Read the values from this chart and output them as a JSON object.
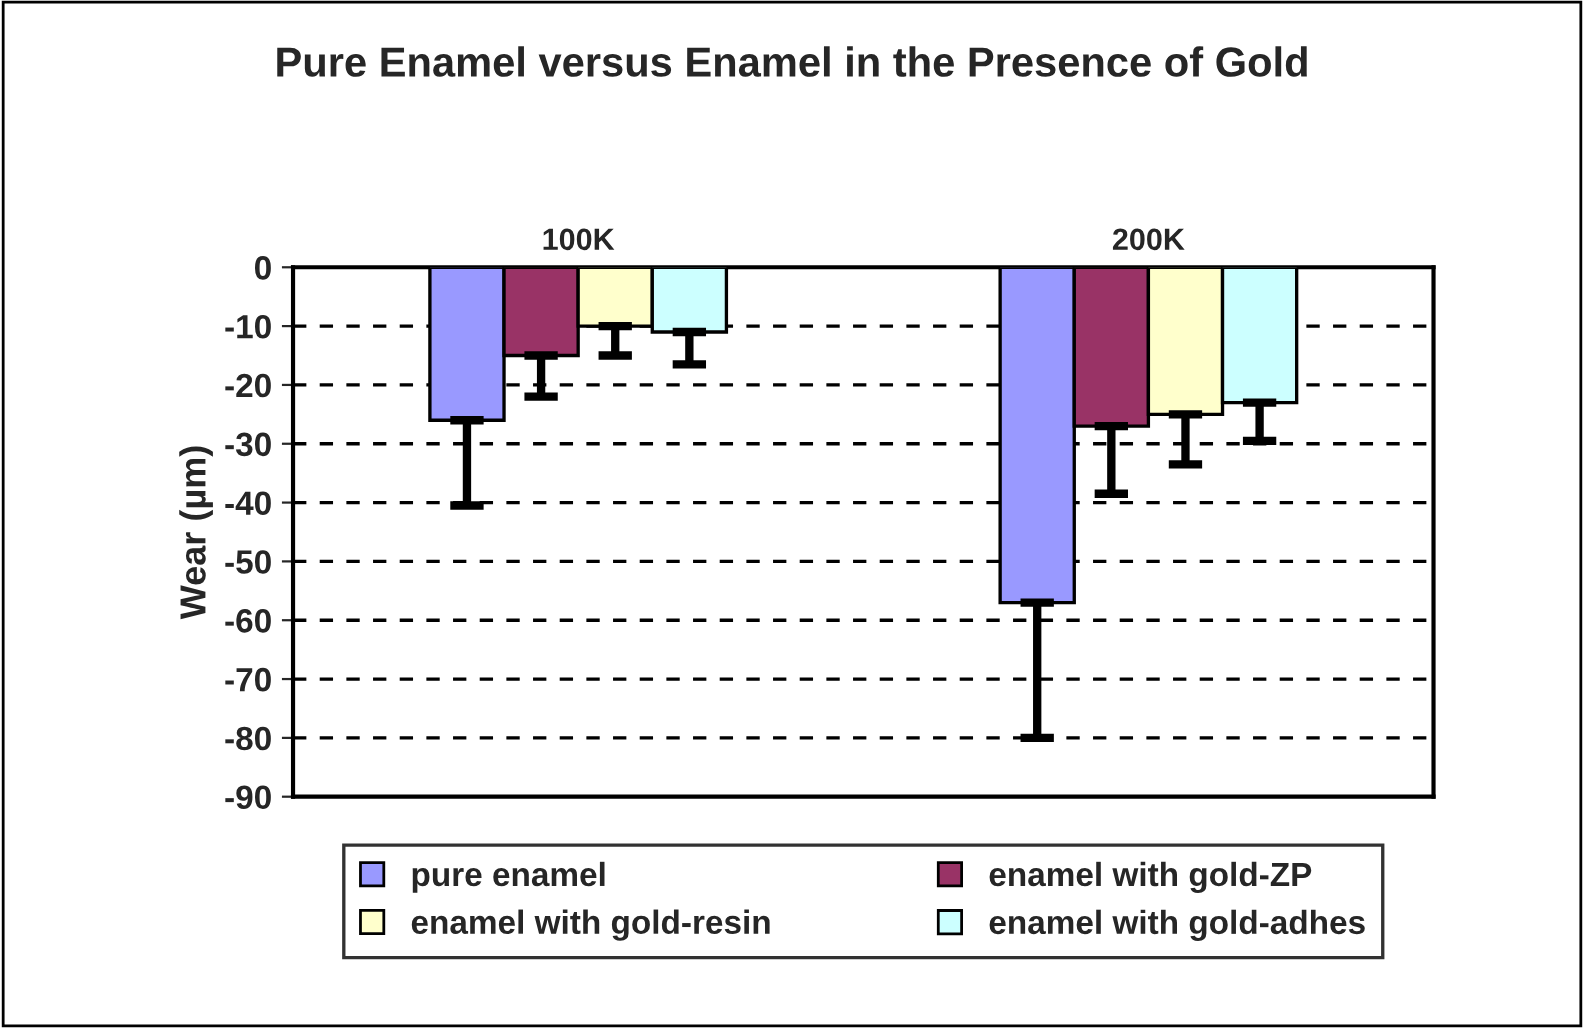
{
  "chart_data": {
    "type": "bar",
    "title": "Pure Enamel versus Enamel in the Presence of Gold",
    "ylabel": "Wear (µm)",
    "categories": [
      "100K",
      "200K"
    ],
    "series": [
      {
        "name": "pure enamel",
        "color": "#9999ff",
        "values": [
          -26,
          -57
        ],
        "errors": [
          [
            -40.5,
            -26
          ],
          [
            -80,
            -57
          ]
        ]
      },
      {
        "name": "enamel with gold-ZP",
        "color": "#993366",
        "values": [
          -15,
          -27
        ],
        "errors": [
          [
            -22,
            -15
          ],
          [
            -38.5,
            -27
          ]
        ]
      },
      {
        "name": "enamel with gold-resin",
        "color": "#ffffcc",
        "values": [
          -10,
          -25
        ],
        "errors": [
          [
            -15,
            -10
          ],
          [
            -33.5,
            -25
          ]
        ]
      },
      {
        "name": "enamel with gold-adhes",
        "color": "#ccffff",
        "values": [
          -11,
          -23
        ],
        "errors": [
          [
            -16.5,
            -11
          ],
          [
            -29.5,
            -23
          ]
        ]
      }
    ],
    "ylim": [
      -90,
      0
    ],
    "yticks": [
      0,
      -10,
      -20,
      -30,
      -40,
      -50,
      -60,
      -70,
      -80,
      -90
    ],
    "grid": "y",
    "line_style": "dashed",
    "legend": "bottom"
  }
}
